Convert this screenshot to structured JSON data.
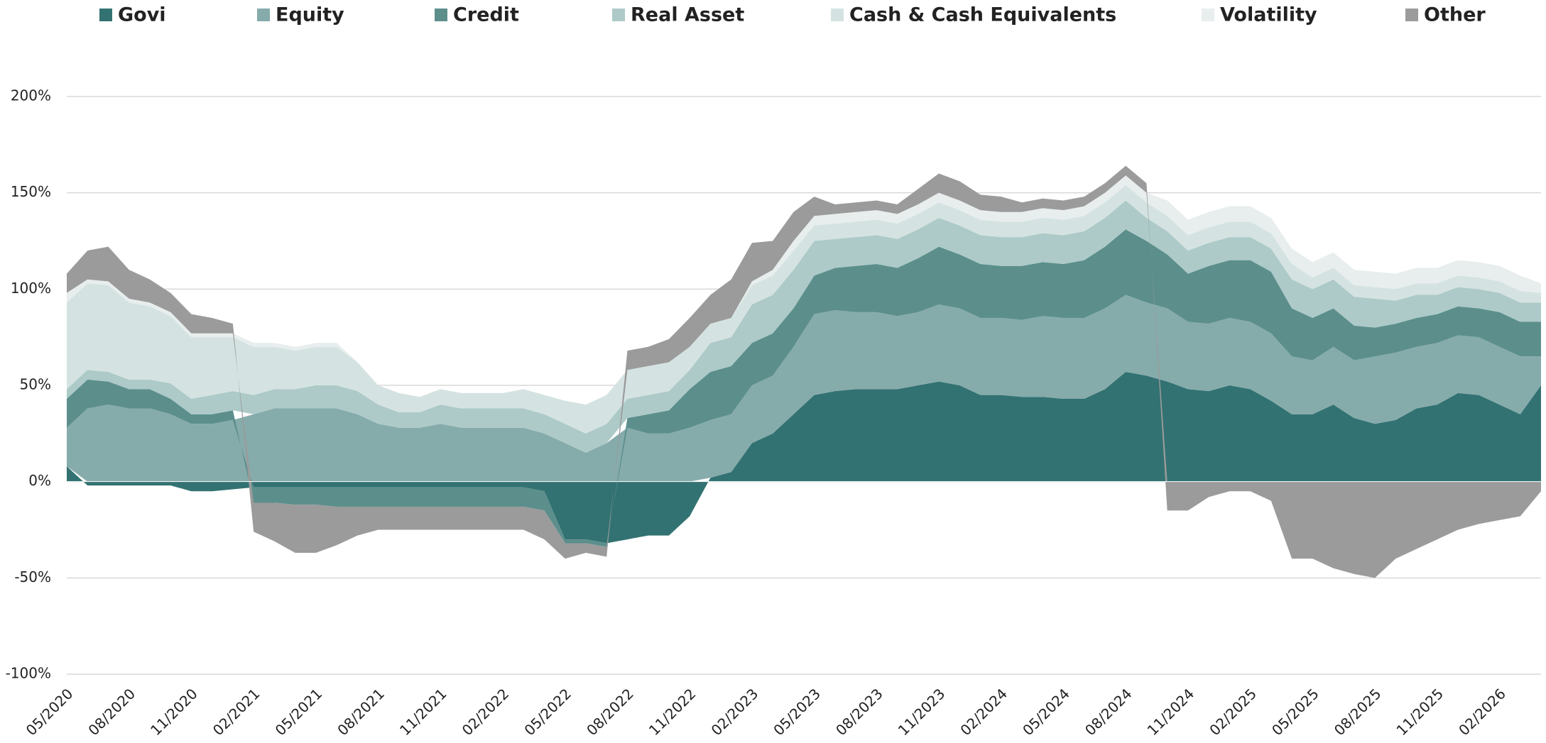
{
  "chart_data": {
    "type": "area",
    "stacked": true,
    "x": [
      "05/2020",
      "06/2020",
      "07/2020",
      "08/2020",
      "09/2020",
      "10/2020",
      "11/2020",
      "12/2020",
      "01/2021",
      "02/2021",
      "03/2021",
      "04/2021",
      "05/2021",
      "06/2021",
      "07/2021",
      "08/2021",
      "09/2021",
      "10/2021",
      "11/2021",
      "12/2021",
      "01/2022",
      "02/2022",
      "03/2022",
      "04/2022",
      "05/2022",
      "06/2022",
      "07/2022",
      "08/2022",
      "09/2022",
      "10/2022",
      "11/2022",
      "12/2022",
      "01/2023",
      "02/2023",
      "03/2023",
      "04/2023",
      "05/2023",
      "06/2023",
      "07/2023",
      "08/2023",
      "09/2023",
      "10/2023",
      "11/2023",
      "12/2023",
      "01/2024",
      "02/2024",
      "03/2024",
      "04/2024",
      "05/2024",
      "06/2024",
      "07/2024",
      "08/2024",
      "09/2024",
      "10/2024",
      "11/2024",
      "12/2024",
      "01/2025",
      "02/2025",
      "03/2025",
      "04/2025",
      "05/2025",
      "06/2025",
      "07/2025",
      "08/2025",
      "09/2025",
      "10/2025",
      "11/2025",
      "12/2025",
      "01/2026",
      "02/2026",
      "03/2026",
      "04/2026"
    ],
    "xticks": [
      "05/2020",
      "08/2020",
      "11/2020",
      "02/2021",
      "05/2021",
      "08/2021",
      "11/2021",
      "02/2022",
      "05/2022",
      "08/2022",
      "11/2022",
      "02/2023",
      "05/2023",
      "08/2023",
      "11/2023",
      "02/2024",
      "05/2024",
      "08/2024",
      "11/2024",
      "02/2025",
      "05/2025",
      "08/2025",
      "11/2025",
      "02/2026"
    ],
    "ylim": [
      -100,
      200
    ],
    "yticks": [
      {
        "value": -100,
        "label": "-100%"
      },
      {
        "value": -50,
        "label": "-50%"
      },
      {
        "value": 0,
        "label": "0%"
      },
      {
        "value": 50,
        "label": "50%"
      },
      {
        "value": 100,
        "label": "100%"
      },
      {
        "value": 150,
        "label": "150%"
      },
      {
        "value": 200,
        "label": "200%"
      }
    ],
    "grid": true,
    "legend": "top",
    "series": [
      {
        "name": "Govi",
        "color": "#337272",
        "values": [
          8,
          -2,
          -2,
          -2,
          -2,
          -2,
          -5,
          -5,
          -4,
          -3,
          -3,
          -3,
          -3,
          -3,
          -3,
          -3,
          -3,
          -3,
          -3,
          -3,
          -3,
          -3,
          -3,
          -5,
          -30,
          -30,
          -32,
          -30,
          -28,
          -28,
          -18,
          2,
          5,
          20,
          25,
          35,
          45,
          47,
          48,
          48,
          48,
          50,
          52,
          50,
          45,
          45,
          44,
          44,
          43,
          43,
          48,
          57,
          55,
          52,
          48,
          47,
          50,
          48,
          42,
          35,
          35,
          40,
          33,
          30,
          32,
          38,
          40,
          46,
          45,
          40,
          35,
          50
        ]
      },
      {
        "name": "Equity",
        "color": "#86abab",
        "values": [
          20,
          38,
          40,
          38,
          38,
          35,
          30,
          30,
          32,
          35,
          38,
          38,
          38,
          38,
          35,
          30,
          28,
          28,
          30,
          28,
          28,
          28,
          28,
          25,
          20,
          15,
          20,
          28,
          25,
          25,
          28,
          30,
          30,
          30,
          30,
          35,
          42,
          42,
          40,
          40,
          38,
          38,
          40,
          40,
          40,
          40,
          40,
          42,
          42,
          42,
          42,
          40,
          38,
          38,
          35,
          35,
          35,
          35,
          35,
          30,
          28,
          30,
          30,
          35,
          35,
          32,
          32,
          30,
          30,
          30,
          30,
          15
        ]
      },
      {
        "name": "Credit",
        "color": "#5c8f8c",
        "values": [
          15,
          15,
          12,
          10,
          10,
          8,
          5,
          5,
          5,
          -8,
          -8,
          -9,
          -9,
          -10,
          -10,
          -10,
          -10,
          -10,
          -10,
          -10,
          -10,
          -10,
          -10,
          -10,
          -2,
          -2,
          -2,
          5,
          10,
          12,
          20,
          25,
          25,
          22,
          22,
          20,
          20,
          22,
          24,
          25,
          25,
          28,
          30,
          28,
          28,
          27,
          28,
          28,
          28,
          30,
          32,
          34,
          32,
          28,
          25,
          30,
          30,
          32,
          32,
          25,
          22,
          20,
          18,
          15,
          15,
          15,
          15,
          15,
          15,
          18,
          18,
          18
        ]
      },
      {
        "name": "Real Asset",
        "color": "#adcac8",
        "values": [
          5,
          5,
          5,
          5,
          5,
          8,
          8,
          10,
          10,
          10,
          10,
          10,
          12,
          12,
          12,
          10,
          8,
          8,
          10,
          10,
          10,
          10,
          10,
          10,
          10,
          10,
          10,
          10,
          10,
          10,
          10,
          15,
          15,
          20,
          20,
          20,
          18,
          15,
          15,
          15,
          15,
          15,
          15,
          15,
          15,
          15,
          15,
          15,
          15,
          15,
          15,
          15,
          12,
          12,
          12,
          12,
          12,
          12,
          12,
          15,
          15,
          15,
          15,
          15,
          12,
          12,
          10,
          10,
          10,
          10,
          10,
          10
        ]
      },
      {
        "name": "Cash & Cash Equivalents",
        "color": "#d4e3e1",
        "values": [
          45,
          45,
          45,
          40,
          38,
          35,
          32,
          30,
          28,
          25,
          22,
          20,
          20,
          20,
          15,
          10,
          10,
          8,
          8,
          8,
          8,
          8,
          10,
          10,
          12,
          15,
          15,
          15,
          15,
          15,
          12,
          10,
          10,
          10,
          10,
          10,
          8,
          8,
          8,
          8,
          8,
          8,
          8,
          8,
          8,
          8,
          8,
          8,
          8,
          8,
          8,
          8,
          8,
          8,
          8,
          8,
          8,
          8,
          8,
          8,
          6,
          6,
          6,
          6,
          6,
          6,
          6,
          6,
          6,
          6,
          6,
          5
        ]
      },
      {
        "name": "Volatility",
        "color": "#e7eeed",
        "values": [
          5,
          2,
          2,
          2,
          2,
          2,
          2,
          2,
          2,
          2,
          2,
          2,
          2,
          2,
          0,
          0,
          0,
          0,
          0,
          0,
          0,
          0,
          0,
          0,
          0,
          0,
          0,
          0,
          0,
          0,
          0,
          0,
          0,
          2,
          3,
          5,
          5,
          5,
          5,
          5,
          5,
          5,
          5,
          5,
          5,
          5,
          5,
          5,
          5,
          5,
          5,
          5,
          5,
          8,
          8,
          8,
          8,
          8,
          8,
          8,
          8,
          8,
          8,
          8,
          8,
          8,
          8,
          8,
          8,
          8,
          8,
          5
        ]
      },
      {
        "name": "Other",
        "color": "#9b9b9b",
        "values": [
          10,
          15,
          18,
          15,
          12,
          10,
          10,
          8,
          5,
          -15,
          -20,
          -25,
          -25,
          -20,
          -15,
          -12,
          -12,
          -12,
          -12,
          -12,
          -12,
          -12,
          -12,
          -15,
          -8,
          -5,
          -5,
          10,
          10,
          12,
          15,
          15,
          20,
          20,
          15,
          15,
          10,
          5,
          5,
          5,
          5,
          8,
          10,
          10,
          8,
          8,
          5,
          5,
          5,
          5,
          5,
          5,
          5,
          -15,
          -15,
          -8,
          -5,
          -5,
          -10,
          -40,
          -40,
          -45,
          -48,
          -50,
          -40,
          -35,
          -30,
          -25,
          -22,
          -20,
          -18,
          -5
        ]
      }
    ]
  }
}
